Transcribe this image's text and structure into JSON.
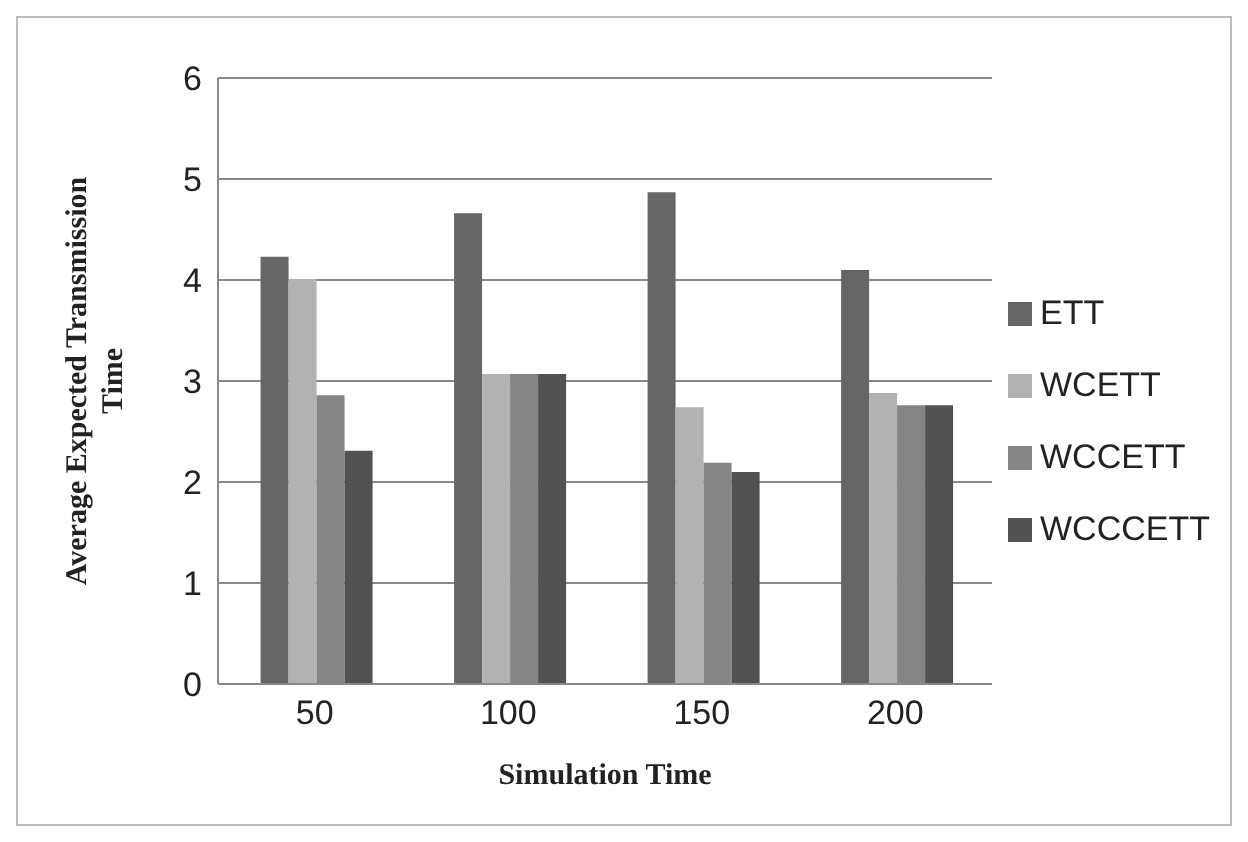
{
  "chart_data": {
    "type": "bar",
    "xlabel": "Simulation Time",
    "ylabel": "Average Expected Transmission Time",
    "categories": [
      "50",
      "100",
      "150",
      "200"
    ],
    "series": [
      {
        "name": "ETT",
        "color": "#666666",
        "values": [
          4.23,
          4.66,
          4.87,
          4.1
        ]
      },
      {
        "name": "WCETT",
        "color": "#b2b2b2",
        "values": [
          4.01,
          3.07,
          2.74,
          2.88
        ]
      },
      {
        "name": "WCCETT",
        "color": "#858585",
        "values": [
          2.86,
          3.07,
          2.19,
          2.76
        ]
      },
      {
        "name": "WCCCETT",
        "color": "#525252",
        "values": [
          2.31,
          3.07,
          2.1,
          2.76
        ]
      }
    ],
    "ylim": [
      0,
      6
    ],
    "yticks": [
      0,
      1,
      2,
      3,
      4,
      5,
      6
    ],
    "grid": "y",
    "legend": "right"
  }
}
